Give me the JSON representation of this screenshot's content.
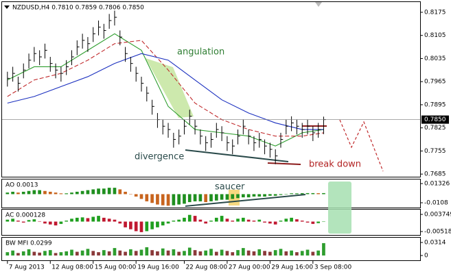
{
  "chart_data": [
    {
      "type": "ohlc",
      "title": "NZDUSD,H4  0.7810 0.7859 0.7806 0.7850",
      "color": "#000000",
      "annotations": [
        "angulation",
        "divergence",
        "break down"
      ],
      "xlim": [
        -1,
        77
      ],
      "ylim": [
        0.7677,
        0.8206
      ],
      "yticks": [
        0.8175,
        0.8105,
        0.8035,
        0.7965,
        0.7895,
        0.7825,
        0.7755,
        0.7685
      ],
      "current": {
        "value": 0.785,
        "label": "0.7850"
      },
      "close": [
        0.7975,
        0.799,
        0.796,
        0.8,
        0.803,
        0.805,
        0.804,
        0.806,
        0.802,
        0.8,
        0.799,
        0.801,
        0.804,
        0.807,
        0.809,
        0.808,
        0.811,
        0.813,
        0.812,
        0.815,
        0.816,
        0.81,
        0.805,
        0.802,
        0.799,
        0.796,
        0.793,
        0.789,
        0.785,
        0.783,
        0.782,
        0.779,
        0.78,
        0.783,
        0.786,
        0.783,
        0.78,
        0.778,
        0.779,
        0.782,
        0.781,
        0.778,
        0.777,
        0.78,
        0.783,
        0.78,
        0.778,
        0.779,
        0.777,
        0.776,
        0.774,
        0.779,
        0.783,
        0.784,
        0.783,
        0.782,
        0.783,
        0.781,
        0.782,
        0.785
      ],
      "high": [
        0.7995,
        0.801,
        0.798,
        0.802,
        0.805,
        0.807,
        0.806,
        0.808,
        0.804,
        0.802,
        0.801,
        0.803,
        0.806,
        0.809,
        0.811,
        0.81,
        0.813,
        0.815,
        0.814,
        0.817,
        0.818,
        0.812,
        0.807,
        0.804,
        0.801,
        0.798,
        0.795,
        0.791,
        0.787,
        0.785,
        0.784,
        0.781,
        0.782,
        0.785,
        0.788,
        0.785,
        0.782,
        0.78,
        0.781,
        0.784,
        0.783,
        0.78,
        0.779,
        0.782,
        0.785,
        0.782,
        0.78,
        0.781,
        0.779,
        0.778,
        0.776,
        0.781,
        0.785,
        0.786,
        0.785,
        0.784,
        0.785,
        0.783,
        0.784,
        0.7859
      ],
      "low": [
        0.795,
        0.7965,
        0.7935,
        0.7975,
        0.8005,
        0.8025,
        0.8015,
        0.8035,
        0.7995,
        0.7975,
        0.7965,
        0.7985,
        0.8015,
        0.8045,
        0.8065,
        0.8055,
        0.8085,
        0.8105,
        0.8095,
        0.8125,
        0.8135,
        0.8075,
        0.8025,
        0.7995,
        0.7965,
        0.7935,
        0.7905,
        0.7865,
        0.7825,
        0.7805,
        0.7795,
        0.7765,
        0.7775,
        0.7805,
        0.7835,
        0.7805,
        0.7775,
        0.7755,
        0.7765,
        0.7795,
        0.7785,
        0.7755,
        0.7745,
        0.7775,
        0.7805,
        0.7775,
        0.7755,
        0.7765,
        0.7745,
        0.7735,
        0.7715,
        0.7765,
        0.7805,
        0.7815,
        0.7805,
        0.7795,
        0.7805,
        0.7785,
        0.7795,
        0.7806
      ],
      "series": [
        {
          "color": "#2e9d2e",
          "dashed": false,
          "x": [
            0,
            5,
            10,
            15,
            20,
            25,
            30,
            35,
            40,
            45,
            50,
            55,
            59
          ],
          "values": [
            0.797,
            0.801,
            0.801,
            0.806,
            0.811,
            0.806,
            0.789,
            0.782,
            0.781,
            0.78,
            0.777,
            0.781,
            0.782
          ]
        },
        {
          "color": "#c0282a",
          "dashed": true,
          "x": [
            0,
            5,
            10,
            15,
            20,
            25,
            30,
            35,
            40,
            45,
            50,
            55,
            59
          ],
          "values": [
            0.792,
            0.797,
            0.799,
            0.803,
            0.808,
            0.809,
            0.8,
            0.79,
            0.785,
            0.782,
            0.78,
            0.78,
            0.781
          ]
        },
        {
          "color": "#1a2fbf",
          "dashed": false,
          "x": [
            0,
            5,
            10,
            15,
            20,
            25,
            30,
            35,
            40,
            45,
            50,
            55,
            59
          ],
          "values": [
            0.79,
            0.792,
            0.795,
            0.798,
            0.802,
            0.805,
            0.803,
            0.797,
            0.791,
            0.787,
            0.784,
            0.782,
            0.782
          ]
        }
      ]
    },
    {
      "type": "histogram",
      "title": "AO 0.0013",
      "annotations": [
        "saucer"
      ],
      "up_color": "#1f8f1f",
      "down_color": "#c8641e",
      "ylim": [
        -0.01681,
        0.01841
      ],
      "yticks": [
        0.01326,
        -0.0108
      ],
      "values": [
        0.002,
        0.003,
        0.002,
        0.003,
        0.004,
        0.005,
        0.005,
        0.004,
        0.003,
        0.002,
        0.001,
        0.001,
        0.002,
        0.003,
        0.004,
        0.005,
        0.006,
        0.007,
        0.007,
        0.008,
        0.008,
        0.006,
        0.003,
        0.0,
        -0.003,
        -0.006,
        -0.009,
        -0.011,
        -0.013,
        -0.014,
        -0.0145,
        -0.014,
        -0.013,
        -0.012,
        -0.01,
        -0.009,
        -0.009,
        -0.01,
        -0.009,
        -0.008,
        -0.007,
        -0.007,
        -0.006,
        -0.005,
        -0.004,
        -0.004,
        -0.003,
        -0.003,
        -0.003,
        -0.002,
        -0.002,
        -0.001,
        0.0,
        0.001,
        0.001,
        0.0012,
        0.0013,
        0.0013,
        0.0012,
        0.0013
      ]
    },
    {
      "type": "histogram",
      "title": "AC 0.000128",
      "up_color": "#1f9f1f",
      "down_color": "#c01830",
      "ylim": [
        -0.00697,
        0.006249
      ],
      "yticks": [
        0.003749,
        -0.00518
      ],
      "values": [
        0.001,
        0.0015,
        0.0005,
        -0.0005,
        0.0008,
        0.0012,
        0.0002,
        -0.001,
        -0.0015,
        -0.002,
        -0.0012,
        0.0005,
        0.0015,
        0.002,
        0.0022,
        0.0018,
        0.0025,
        0.003,
        0.002,
        0.0015,
        0.001,
        -0.001,
        -0.003,
        -0.004,
        -0.005,
        -0.0055,
        -0.005,
        -0.004,
        -0.003,
        -0.002,
        -0.001,
        0.0005,
        0.001,
        0.002,
        0.0035,
        0.003,
        0.001,
        -0.001,
        0.0005,
        0.002,
        0.003,
        0.0015,
        0.0005,
        0.0015,
        0.002,
        0.001,
        0.0005,
        0.001,
        -0.0005,
        -0.001,
        -0.0015,
        0.0005,
        0.0015,
        0.002,
        0.0012,
        0.0005,
        -0.0005,
        -0.0012,
        -0.0008,
        0.000128
      ]
    },
    {
      "type": "histogram",
      "title": "BW MFI 0.0299",
      "up_color": "#2e9d2e",
      "down_color": "#8b3a3a",
      "ylim": [
        -0.0116,
        0.043
      ],
      "yticks": [
        0.0314,
        0
      ],
      "xticks": [
        {
          "value": 0,
          "label": "7 Aug 2013"
        },
        {
          "value": 8,
          "label": "12 Aug 08:00"
        },
        {
          "value": 16,
          "label": "15 Aug 00:00"
        },
        {
          "value": 24,
          "label": "19 Aug 16:00"
        },
        {
          "value": 33,
          "label": "22 Aug 08:00"
        },
        {
          "value": 41,
          "label": "27 Aug 00:00"
        },
        {
          "value": 49,
          "label": "29 Aug 16:00"
        },
        {
          "value": 57,
          "label": "3 Sep 08:00"
        }
      ],
      "values": [
        0.008,
        0.012,
        0.006,
        0.01,
        0.015,
        0.009,
        0.007,
        0.011,
        0.013,
        0.006,
        0.008,
        0.01,
        0.014,
        0.009,
        0.012,
        0.016,
        0.011,
        0.008,
        0.013,
        0.01,
        0.018,
        0.012,
        0.009,
        0.015,
        0.011,
        0.014,
        0.02,
        0.013,
        0.01,
        0.017,
        0.012,
        0.015,
        0.009,
        0.011,
        0.019,
        0.013,
        0.01,
        0.012,
        0.016,
        0.009,
        0.014,
        0.011,
        0.008,
        0.013,
        0.018,
        0.012,
        0.01,
        0.015,
        0.011,
        0.009,
        0.013,
        0.016,
        0.01,
        0.012,
        0.008,
        0.011,
        0.014,
        0.009,
        0.012,
        0.0299
      ]
    }
  ]
}
